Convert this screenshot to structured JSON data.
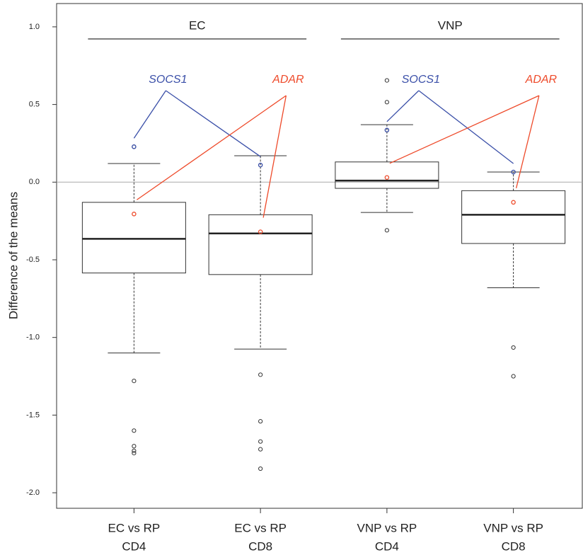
{
  "chart_data": {
    "type": "box",
    "y_label": "Difference of the means",
    "categories": [
      [
        "EC vs RP",
        "CD4"
      ],
      [
        "EC vs RP",
        "CD8"
      ],
      [
        "VNP vs RP",
        "CD4"
      ],
      [
        "VNP vs RP",
        "CD8"
      ]
    ],
    "groups": [
      "EC",
      "VNP"
    ],
    "boxes": [
      {
        "whisker_low": -1.1,
        "q1": -0.585,
        "median": -0.365,
        "q3": -0.13,
        "whisker_high": 0.12,
        "outliers": [
          0.228,
          -1.28,
          -1.6,
          -1.7,
          -1.73,
          -1.745
        ]
      },
      {
        "whisker_low": -1.075,
        "q1": -0.595,
        "median": -0.33,
        "q3": -0.21,
        "whisker_high": 0.17,
        "outliers": [
          -1.24,
          -1.54,
          -1.67,
          -1.72,
          -1.845
        ]
      },
      {
        "whisker_low": -0.195,
        "q1": -0.04,
        "median": 0.01,
        "q3": 0.13,
        "whisker_high": 0.37,
        "outliers": [
          0.655,
          0.515,
          0.335,
          -0.31
        ]
      },
      {
        "whisker_low": -0.68,
        "q1": -0.395,
        "median": -0.21,
        "q3": -0.055,
        "whisker_high": 0.065,
        "outliers": [
          -1.065,
          -1.25
        ]
      }
    ],
    "highlights": [
      {
        "name": "SOCS1",
        "color": "#3a4fa8",
        "values": [
          0.228,
          0.11,
          0.335,
          0.065
        ]
      },
      {
        "name": "ADAR",
        "color": "#ee4a2a",
        "values": [
          -0.205,
          -0.32,
          0.03,
          -0.13
        ]
      }
    ],
    "reference_line": 0,
    "ylim": [
      -2.1,
      1.15
    ],
    "yticks": [
      {
        "value": 1,
        "label": "1.0"
      },
      {
        "value": 0.5,
        "label": "0.5"
      },
      {
        "value": 0,
        "label": "0.0"
      },
      {
        "value": -0.5,
        "label": "-0.5"
      },
      {
        "value": -1,
        "label": "-1.0"
      },
      {
        "value": -1.5,
        "label": "-1.5"
      },
      {
        "value": -2,
        "label": "-2.0"
      }
    ]
  }
}
